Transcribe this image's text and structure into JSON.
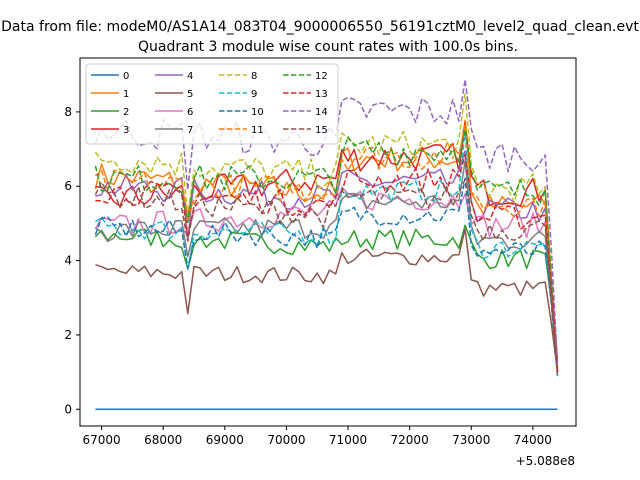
{
  "chart_data": {
    "type": "line",
    "suptitle": "Data from file: modeM0/AS1A14_083T04_9000006550_56191cztM0_level2_quad_clean.evt",
    "title": "Quadrant 3 module wise count rates with 100.0s bins.",
    "xlabel": "",
    "ylabel": "",
    "x_offset_label": "+5.088e8",
    "xlim": [
      66650,
      74700
    ],
    "ylim": [
      -0.45,
      9.45
    ],
    "xticks": [
      67000,
      68000,
      69000,
      70000,
      71000,
      72000,
      73000,
      74000
    ],
    "yticks": [
      0,
      2,
      4,
      6,
      8
    ],
    "x_start": 66900,
    "x_end": 74400,
    "bin": 100,
    "legend_position": "upper-left",
    "series": [
      {
        "name": "0",
        "color": "#1f77b4",
        "dash": false,
        "start": 0.0,
        "mean": 0.0,
        "drop": [
          0.0,
          0.0
        ]
      },
      {
        "name": "1",
        "color": "#ff7f0e",
        "dash": false,
        "start": 6.3,
        "mean": 5.8,
        "peak": 7.9,
        "drop": [
          3.0,
          0.9
        ]
      },
      {
        "name": "2",
        "color": "#2ca02c",
        "dash": false,
        "start": 4.7,
        "mean": 4.4,
        "peak": 4.8,
        "drop": [
          2.9,
          1.0
        ]
      },
      {
        "name": "3",
        "color": "#d62728",
        "dash": false,
        "start": 5.6,
        "mean": 6.2,
        "peak": 7.5,
        "drop": [
          3.5,
          1.3
        ]
      },
      {
        "name": "4",
        "color": "#9467bd",
        "dash": false,
        "start": 6.0,
        "mean": 5.7,
        "peak": 6.6,
        "drop": [
          3.2,
          1.0
        ]
      },
      {
        "name": "5",
        "color": "#8c564b",
        "dash": false,
        "start": 3.7,
        "mean": 3.6,
        "peak": 4.7,
        "drop": [
          2.3,
          1.0
        ]
      },
      {
        "name": "6",
        "color": "#e377c2",
        "dash": false,
        "start": 4.9,
        "mean": 5.3,
        "peak": 6.1,
        "drop": [
          2.9,
          1.0
        ]
      },
      {
        "name": "7",
        "color": "#7f7f7f",
        "dash": false,
        "start": 4.8,
        "mean": 4.9,
        "peak": 6.4,
        "drop": [
          3.0,
          1.0
        ]
      },
      {
        "name": "8",
        "color": "#bcbd22",
        "dash": true,
        "start": 6.8,
        "mean": 6.3,
        "peak": 8.1,
        "drop": [
          3.6,
          1.1
        ]
      },
      {
        "name": "9",
        "color": "#17becf",
        "dash": true,
        "start": 4.9,
        "mean": 4.7,
        "peak": 7.3,
        "drop": [
          3.0,
          1.0
        ]
      },
      {
        "name": "10",
        "color": "#1f77b4",
        "dash": true,
        "start": 4.9,
        "mean": 4.6,
        "peak": 6.0,
        "drop": [
          2.8,
          0.9
        ]
      },
      {
        "name": "11",
        "color": "#ff7f0e",
        "dash": true,
        "start": 6.1,
        "mean": 5.9,
        "peak": 7.9,
        "drop": [
          3.3,
          1.0
        ]
      },
      {
        "name": "12",
        "color": "#2ca02c",
        "dash": true,
        "start": 6.2,
        "mean": 6.2,
        "peak": 7.9,
        "drop": [
          3.5,
          1.1
        ]
      },
      {
        "name": "13",
        "color": "#d62728",
        "dash": true,
        "start": 5.9,
        "mean": 5.5,
        "peak": 7.0,
        "drop": [
          3.2,
          1.0
        ]
      },
      {
        "name": "14",
        "color": "#9467bd",
        "dash": true,
        "start": 7.5,
        "mean": 7.2,
        "peak": 9.0,
        "drop": [
          4.3,
          1.2
        ]
      },
      {
        "name": "15",
        "color": "#8c564b",
        "dash": true,
        "start": 5.8,
        "mean": 5.2,
        "peak": 6.3,
        "drop": [
          3.0,
          1.0
        ]
      }
    ]
  }
}
